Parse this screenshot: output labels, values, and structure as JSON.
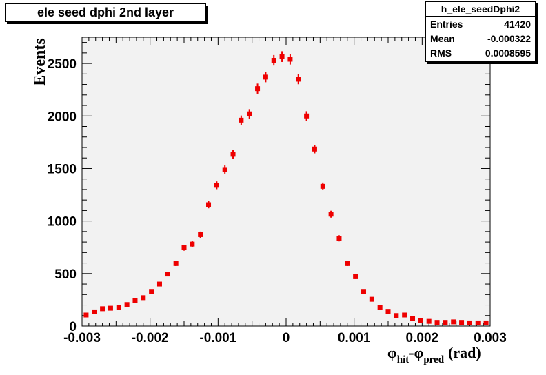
{
  "title": "ele seed dphi 2nd layer",
  "stats": {
    "name": "h_ele_seedDphi2",
    "rows": [
      {
        "label": "Entries",
        "value": "41420"
      },
      {
        "label": "Mean",
        "value": "-0.000322"
      },
      {
        "label": "RMS",
        "value": "0.0008595"
      }
    ]
  },
  "colors": {
    "frame_fill": "#f2f2f2",
    "marker": "#ee0000"
  },
  "chart_data": {
    "type": "scatter",
    "ylabel": "Events",
    "xlabel_base1": "φ",
    "xlabel_sub1": "hit",
    "xlabel_mid": "-",
    "xlabel_base2": "φ",
    "xlabel_sub2": "pred",
    "xlabel_unit": "(rad)",
    "xlim": [
      -0.003,
      0.003
    ],
    "ylim": [
      0,
      2750
    ],
    "x_ticks": [
      {
        "value": -0.003,
        "label": "-0.003"
      },
      {
        "value": -0.002,
        "label": "-0.002"
      },
      {
        "value": -0.001,
        "label": "-0.001"
      },
      {
        "value": 0,
        "label": "0"
      },
      {
        "value": 0.001,
        "label": "0.001"
      },
      {
        "value": 0.002,
        "label": "0.002"
      },
      {
        "value": 0.003,
        "label": "0.003"
      }
    ],
    "y_ticks": [
      {
        "value": 0,
        "label": "0"
      },
      {
        "value": 500,
        "label": "500"
      },
      {
        "value": 1000,
        "label": "1000"
      },
      {
        "value": 1500,
        "label": "1500"
      },
      {
        "value": 2000,
        "label": "2000"
      },
      {
        "value": 2500,
        "label": "2500"
      }
    ],
    "x": [
      -0.00294,
      -0.00282,
      -0.0027,
      -0.00258,
      -0.00246,
      -0.00234,
      -0.00222,
      -0.0021,
      -0.00198,
      -0.00186,
      -0.00174,
      -0.00162,
      -0.0015,
      -0.00138,
      -0.00126,
      -0.00114,
      -0.00102,
      -0.0009,
      -0.00078,
      -0.00066,
      -0.00054,
      -0.00042,
      -0.0003,
      -0.00018,
      -6e-05,
      6e-05,
      0.00018,
      0.0003,
      0.00042,
      0.00054,
      0.00066,
      0.00078,
      0.0009,
      0.00102,
      0.00114,
      0.00126,
      0.00138,
      0.0015,
      0.00162,
      0.00174,
      0.00186,
      0.00198,
      0.0021,
      0.00222,
      0.00234,
      0.00246,
      0.00258,
      0.0027,
      0.00282,
      0.00294
    ],
    "values": [
      105,
      135,
      165,
      170,
      180,
      205,
      240,
      270,
      330,
      400,
      495,
      595,
      745,
      780,
      870,
      1155,
      1340,
      1490,
      1635,
      1960,
      2020,
      2260,
      2370,
      2530,
      2565,
      2540,
      2350,
      2000,
      1685,
      1330,
      1065,
      835,
      595,
      470,
      330,
      255,
      175,
      140,
      100,
      105,
      75,
      55,
      45,
      35,
      35,
      40,
      35,
      30,
      30,
      30
    ],
    "errors": [
      10,
      12,
      13,
      13,
      13,
      14,
      15,
      16,
      18,
      20,
      22,
      24,
      27,
      28,
      30,
      34,
      37,
      39,
      40,
      44,
      45,
      48,
      49,
      50,
      51,
      50,
      48,
      45,
      41,
      36,
      33,
      29,
      24,
      22,
      18,
      16,
      13,
      12,
      10,
      10,
      9,
      7,
      7,
      6,
      6,
      6,
      6,
      5,
      5,
      5
    ]
  }
}
